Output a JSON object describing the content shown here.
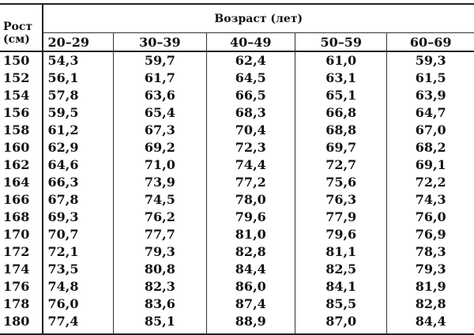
{
  "header": {
    "height_label_line1": "Рост",
    "height_label_line2": "(см)",
    "age_label": "Возраст  (лет)",
    "age_groups": [
      "20–29",
      "30–39",
      "40–49",
      "50–59",
      "60–69"
    ]
  },
  "rows": [
    {
      "height": "150",
      "values": [
        "54,3",
        "59,7",
        "62,4",
        "61,0",
        "59,3"
      ]
    },
    {
      "height": "152",
      "values": [
        "56,1",
        "61,7",
        "64,5",
        "63,1",
        "61,5"
      ]
    },
    {
      "height": "154",
      "values": [
        "57,8",
        "63,6",
        "66,5",
        "65,1",
        "63,9"
      ]
    },
    {
      "height": "156",
      "values": [
        "59,5",
        "65,4",
        "68,3",
        "66,8",
        "64,7"
      ]
    },
    {
      "height": "158",
      "values": [
        "61,2",
        "67,3",
        "70,4",
        "68,8",
        "67,0"
      ]
    },
    {
      "height": "160",
      "values": [
        "62,9",
        "69,2",
        "72,3",
        "69,7",
        "68,2"
      ]
    },
    {
      "height": "162",
      "values": [
        "64,6",
        "71,0",
        "74,4",
        "72,7",
        "69,1"
      ]
    },
    {
      "height": "164",
      "values": [
        "66,3",
        "73,9",
        "77,2",
        "75,6",
        "72,2"
      ]
    },
    {
      "height": "166",
      "values": [
        "67,8",
        "74,5",
        "78,0",
        "76,3",
        "74,3"
      ]
    },
    {
      "height": "168",
      "values": [
        "69,3",
        "76,2",
        "79,6",
        "77,9",
        "76,0"
      ]
    },
    {
      "height": "170",
      "values": [
        "70,7",
        "77,7",
        "81,0",
        "79,6",
        "76,9"
      ]
    },
    {
      "height": "172",
      "values": [
        "72,1",
        "79,3",
        "82,8",
        "81,1",
        "78,3"
      ]
    },
    {
      "height": "174",
      "values": [
        "73,5",
        "80,8",
        "84,4",
        "82,5",
        "79,3"
      ]
    },
    {
      "height": "176",
      "values": [
        "74,8",
        "82,3",
        "86,0",
        "84,1",
        "81,9"
      ]
    },
    {
      "height": "178",
      "values": [
        "76,0",
        "83,6",
        "87,4",
        "85,5",
        "82,8"
      ]
    },
    {
      "height": "180",
      "values": [
        "77,4",
        "85,1",
        "88,9",
        "87,0",
        "84,4"
      ]
    }
  ]
}
